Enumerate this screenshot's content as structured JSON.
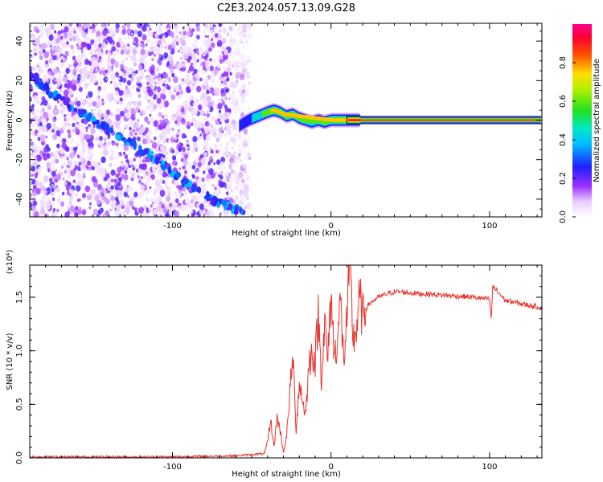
{
  "title": "C2E3.2024.057.13.09.G28",
  "colors": {
    "snr_line": "#e8322c",
    "spectrogram_scatter": "#8a2be2",
    "background": "#ffffff"
  },
  "colorbar": {
    "label": "Normalized spectral amplitude",
    "ticks": [
      "0.0",
      "0.2",
      "0.4",
      "0.6",
      "0.8"
    ],
    "range": [
      0,
      1
    ],
    "colormap": "rainbow (white-violet-blue-cyan-green-yellow-red-magenta)"
  },
  "chart_data": [
    {
      "type": "heatmap",
      "title": "C2E3.2024.057.13.09.G28",
      "xlabel": "Height of straight line (km)",
      "ylabel": "Frequency (Hz)",
      "xlim": [
        -190,
        133
      ],
      "ylim": [
        -49,
        49
      ],
      "x_ticks": [
        "-100",
        "0",
        "100"
      ],
      "y_ticks": [
        "-40",
        "-20",
        "0",
        "20",
        "40"
      ],
      "noise_region_x": [
        -190,
        -55
      ],
      "doppler_track": {
        "description_points_x": [
          -190,
          -170,
          -150,
          -130,
          -110,
          -90,
          -70,
          -55
        ],
        "description_points_y": [
          22,
          10,
          0,
          -10,
          -20,
          -33,
          -42,
          -47
        ]
      },
      "signal_track": {
        "x": [
          -58,
          -52,
          -46,
          -40,
          -36,
          -32,
          -28,
          -24,
          -20,
          -16,
          -12,
          -8,
          -4,
          0,
          4,
          8,
          12,
          20,
          60,
          100,
          133
        ],
        "y": [
          -3,
          0,
          2,
          4,
          5,
          4,
          2,
          3,
          1,
          0,
          -1,
          0,
          -1,
          0,
          0,
          0,
          0,
          0,
          0,
          0,
          0
        ],
        "amplitude": [
          0.25,
          0.35,
          0.5,
          0.65,
          0.8,
          0.75,
          0.7,
          0.65,
          0.6,
          0.55,
          0.5,
          0.55,
          0.6,
          0.7,
          0.8,
          0.85,
          0.9,
          0.9,
          0.9,
          0.9,
          0.9
        ]
      }
    },
    {
      "type": "line",
      "xlabel": "Height of straight line (km)",
      "ylabel": "SNR (10 * v/v)",
      "y_multiplier": "(x10⁴)",
      "xlim": [
        -190,
        133
      ],
      "ylim": [
        0,
        1.8
      ],
      "x_ticks": [
        "-100",
        "0",
        "100"
      ],
      "y_ticks": [
        "0.0",
        "0.5",
        "1.0",
        "1.5"
      ],
      "series": [
        {
          "x": [
            -190,
            -150,
            -100,
            -60,
            -42,
            -40,
            -38,
            -36,
            -34,
            -32,
            -30,
            -28,
            -26,
            -24,
            -22,
            -20,
            -18,
            -16,
            -14,
            -12,
            -10,
            -8,
            -6,
            -4,
            -2,
            0,
            2,
            4,
            6,
            8,
            10,
            12,
            14,
            16,
            18,
            20,
            22,
            25,
            30,
            35,
            40,
            45,
            50,
            60,
            70,
            80,
            90,
            95,
            100,
            101,
            102,
            110,
            120,
            130,
            133
          ],
          "y": [
            0.01,
            0.01,
            0.01,
            0.02,
            0.04,
            0.15,
            0.35,
            0.1,
            0.38,
            0.25,
            0.05,
            0.2,
            0.6,
            0.95,
            0.25,
            0.7,
            0.55,
            0.4,
            0.85,
            1.0,
            0.9,
            1.35,
            0.75,
            1.25,
            0.9,
            1.55,
            0.95,
            1.1,
            1.45,
            0.9,
            1.3,
            1.8,
            1.1,
            1.2,
            1.5,
            1.3,
            1.4,
            1.45,
            1.5,
            1.53,
            1.55,
            1.55,
            1.54,
            1.53,
            1.52,
            1.51,
            1.5,
            1.49,
            1.48,
            1.28,
            1.6,
            1.47,
            1.44,
            1.41,
            1.4
          ]
        }
      ]
    }
  ]
}
